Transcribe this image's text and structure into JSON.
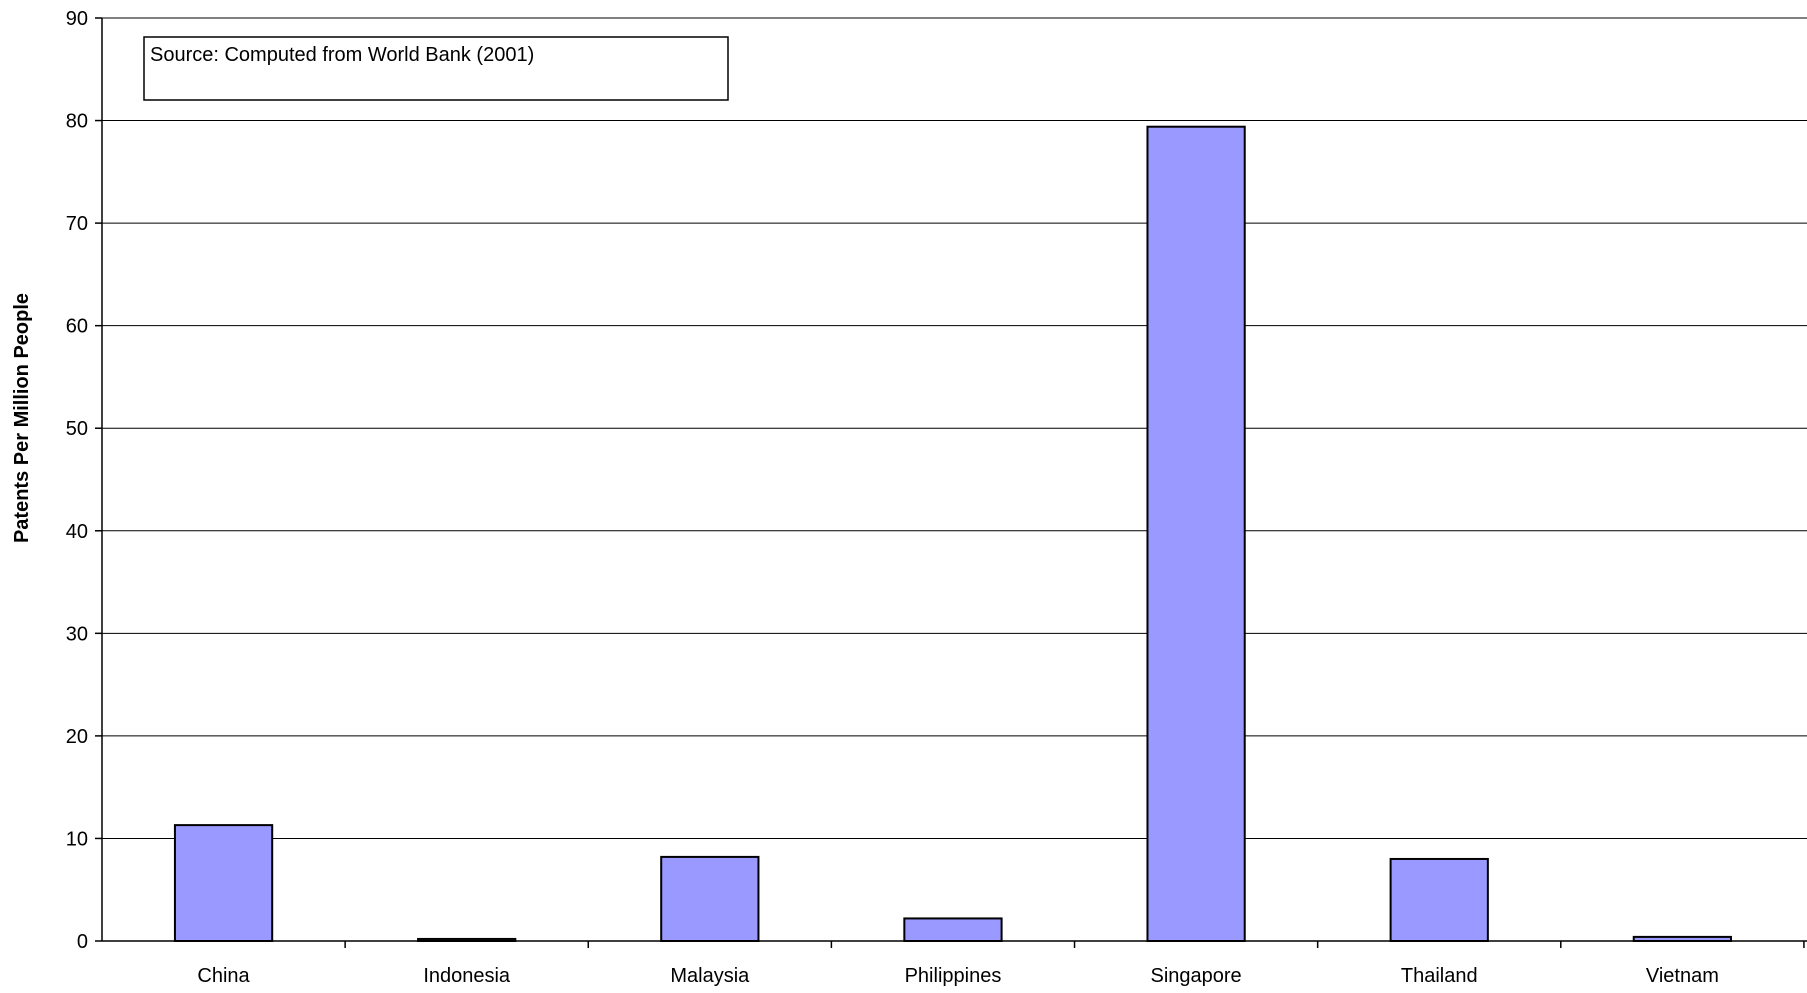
{
  "chart_data": {
    "type": "bar",
    "categories": [
      "China",
      "Indonesia",
      "Malaysia",
      "Philippines",
      "Singapore",
      "Thailand",
      "Vietnam"
    ],
    "values": [
      11.3,
      0.2,
      8.2,
      2.2,
      79.4,
      8.0,
      0.4
    ],
    "title": "",
    "xlabel": "",
    "ylabel": "Patents Per Million People",
    "ylim": [
      0,
      90
    ],
    "yticks": [
      0,
      10,
      20,
      30,
      40,
      50,
      60,
      70,
      80,
      90
    ],
    "grid": true,
    "annotation": "Source: Computed from World Bank (2001)",
    "bar_color": "#9999ff",
    "bar_edge_color": "#000000",
    "gridline_color": "#000000"
  }
}
